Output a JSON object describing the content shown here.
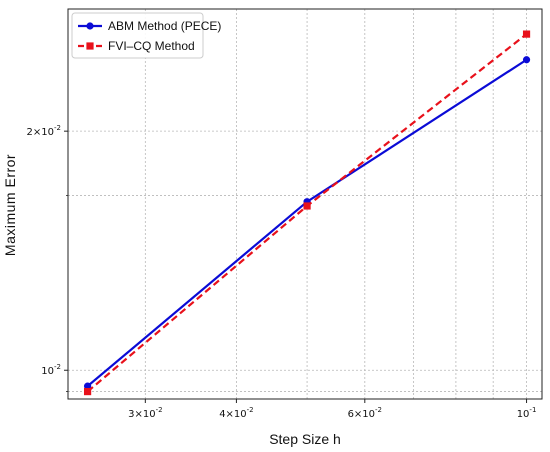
{
  "chart_data": {
    "type": "line",
    "xscale": "log",
    "yscale": "log",
    "xlabel": "Step Size h",
    "ylabel": "Maximum Error",
    "xlim": [
      0.0235,
      0.105
    ],
    "ylim": [
      0.0092,
      0.0285
    ],
    "grid": true,
    "legend": "top-left",
    "x_ticks": [
      {
        "value": 0.03,
        "mantissa": "3",
        "exp": "-2"
      },
      {
        "value": 0.04,
        "mantissa": "4",
        "exp": "-2"
      },
      {
        "value": 0.06,
        "mantissa": "6",
        "exp": "-2"
      },
      {
        "value": 0.1,
        "mantissa": "",
        "exp": "-1"
      }
    ],
    "x_minor_grid": [
      0.05,
      0.07,
      0.08,
      0.09
    ],
    "y_ticks": [
      {
        "value": 0.01,
        "mantissa": "",
        "exp": "-2"
      },
      {
        "value": 0.02,
        "mantissa": "2",
        "exp": "-2"
      }
    ],
    "y_minor_grid": [
      0.0094,
      0.0166
    ],
    "x": [
      0.025,
      0.05,
      0.1
    ],
    "series": [
      {
        "name": "ABM Method (PECE)",
        "values": [
          0.00955,
          0.0163,
          0.0246
        ],
        "color": "#0b0bd6",
        "marker": "circle",
        "dash": "solid"
      },
      {
        "name": "FVI–CQ Method",
        "values": [
          0.0094,
          0.0161,
          0.0265
        ],
        "color": "#e8111b",
        "marker": "square",
        "dash": "dashed"
      }
    ]
  }
}
